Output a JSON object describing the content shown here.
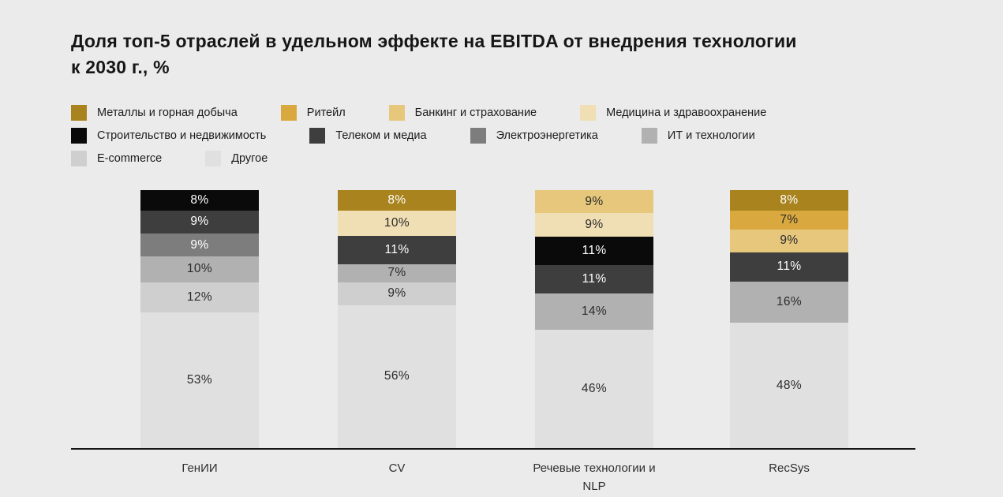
{
  "chart_data": {
    "type": "bar",
    "stacked": true,
    "title": "Доля топ-5 отраслей в удельном эффекте на EBITDA от внедрения технологии к 2030 г., %",
    "unit": "%",
    "legend_position": "top",
    "categories": [
      "ГенИИ",
      "CV",
      "Речевые технологии и NLP",
      "RecSys"
    ],
    "legend": [
      {
        "name": "Металлы и горная добыча",
        "color": "#A8831E",
        "text": "light"
      },
      {
        "name": "Ритейл",
        "color": "#D9A93F",
        "text": "dark"
      },
      {
        "name": "Банкинг и страхование",
        "color": "#E6C77C",
        "text": "dark"
      },
      {
        "name": "Медицина и здравоохранение",
        "color": "#F0DFB4",
        "text": "dark"
      },
      {
        "name": "Строительство и недвижимость",
        "color": "#0A0A0A",
        "text": "light"
      },
      {
        "name": "Телеком и медиа",
        "color": "#3E3E3E",
        "text": "light"
      },
      {
        "name": "Электроэнергетика",
        "color": "#7D7D7D",
        "text": "light"
      },
      {
        "name": "ИТ и технологии",
        "color": "#B1B1B1",
        "text": "dark"
      },
      {
        "name": "E-commerce",
        "color": "#CFCFCF",
        "text": "dark"
      },
      {
        "name": "Другое",
        "color": "#E0E0E0",
        "text": "dark"
      }
    ],
    "bars": [
      {
        "label": "ГенИИ",
        "segments": [
          {
            "category": "Строительство и недвижимость",
            "value": 8
          },
          {
            "category": "Телеком и медиа",
            "value": 9
          },
          {
            "category": "Электроэнергетика",
            "value": 9
          },
          {
            "category": "ИТ и технологии",
            "value": 10
          },
          {
            "category": "E-commerce",
            "value": 12
          },
          {
            "category": "Другое",
            "value": 53
          }
        ]
      },
      {
        "label": "CV",
        "segments": [
          {
            "category": "Металлы и горная добыча",
            "value": 8
          },
          {
            "category": "Медицина и здравоохранение",
            "value": 10
          },
          {
            "category": "Телеком и медиа",
            "value": 11
          },
          {
            "category": "ИТ и технологии",
            "value": 7
          },
          {
            "category": "E-commerce",
            "value": 9
          },
          {
            "category": "Другое",
            "value": 56
          }
        ]
      },
      {
        "label": "Речевые технологии и NLP",
        "segments": [
          {
            "category": "Банкинг и страхование",
            "value": 9
          },
          {
            "category": "Медицина и здравоохранение",
            "value": 9
          },
          {
            "category": "Строительство и недвижимость",
            "value": 11
          },
          {
            "category": "Телеком и медиа",
            "value": 11
          },
          {
            "category": "ИТ и технологии",
            "value": 14
          },
          {
            "category": "Другое",
            "value": 46
          }
        ]
      },
      {
        "label": "RecSys",
        "segments": [
          {
            "category": "Металлы и горная добыча",
            "value": 8
          },
          {
            "category": "Ритейл",
            "value": 7
          },
          {
            "category": "Банкинг и страхование",
            "value": 9
          },
          {
            "category": "Телеком и медиа",
            "value": 11
          },
          {
            "category": "ИТ и технологии",
            "value": 16
          },
          {
            "category": "Другое",
            "value": 48
          }
        ]
      }
    ],
    "label_color_dark": "#2B2B2B",
    "label_color_light": "#FFFFFF"
  }
}
